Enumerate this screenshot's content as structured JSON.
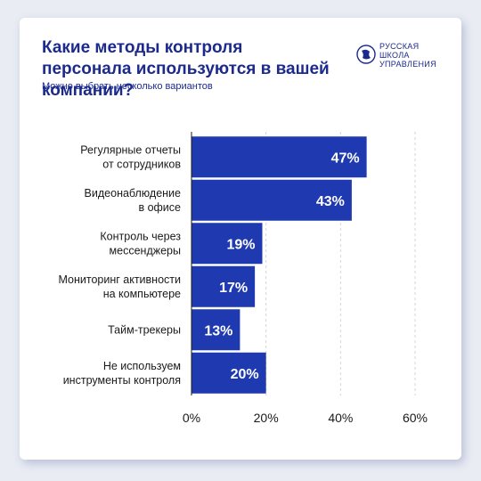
{
  "title": "Какие методы контроля персонала используются в вашей компании?",
  "subtitle": "Можно выбрать несколько вариантов",
  "logo": {
    "lines": [
      "РУССКАЯ",
      "ШКОЛА",
      "УПРАВЛЕНИЯ"
    ]
  },
  "colors": {
    "bar": "#1f3ab0",
    "text": "#1b2a8c",
    "grid": "#d0d4dc",
    "label": "#1a1a1a"
  },
  "chart_data": {
    "type": "bar",
    "orientation": "horizontal",
    "categories": [
      [
        "Регулярные отчеты",
        "от сотрудников"
      ],
      [
        "Видеонаблюдение",
        "в офисе"
      ],
      [
        "Контроль через",
        "мессенджеры"
      ],
      [
        "Мониторинг активности",
        "на компьютере"
      ],
      [
        "Тайм-трекеры"
      ],
      [
        "Не используем",
        "инструменты контроля"
      ]
    ],
    "values": [
      47,
      43,
      19,
      17,
      13,
      20
    ],
    "data_labels": [
      "47%",
      "43%",
      "19%",
      "17%",
      "13%",
      "20%"
    ],
    "xlim": [
      0,
      60
    ],
    "xticks": [
      0,
      20,
      40,
      60
    ],
    "xtick_labels": [
      "0%",
      "20%",
      "40%",
      "60%"
    ],
    "grid": true,
    "unit": "%"
  }
}
